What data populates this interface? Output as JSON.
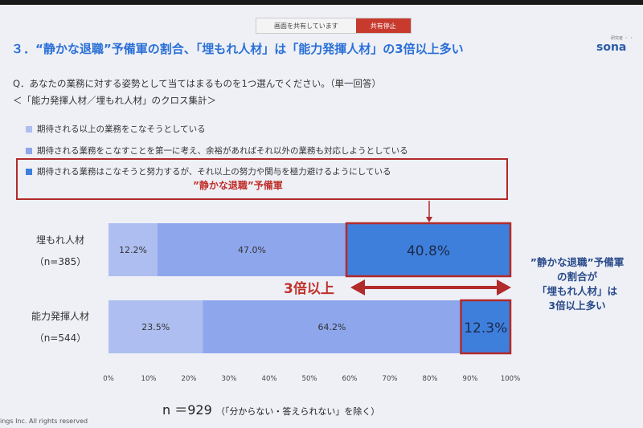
{
  "share_bar": {
    "message": "画面を共有しています",
    "stop_label": "共有停止"
  },
  "title": "３．“静かな退職”予備軍の割合、「埋もれ人材」は「能力発揮人材」の3倍以上多い",
  "logo": {
    "small": "研究者 ・ ・",
    "main": "sona"
  },
  "question": "Q．あなたの業務に対する姿勢として当てはまるものを1つ選んでください。（単一回答）",
  "subquestion": "＜「能力発揮人材／埋もれ人材」のクロス集計＞",
  "callout_label": "”静かな退職”予備軍",
  "comparison_label": "3倍以上",
  "side_note": [
    "”静かな退職”予備軍",
    "の割合が",
    "「埋もれ人材」は",
    "3倍以上多い"
  ],
  "n_total": "n ＝929",
  "n_note": "（「分からない・答えられない」を除く）",
  "copyright": "ings Inc. All rights reserved",
  "chart_data": {
    "type": "bar",
    "stacked": true,
    "orientation": "horizontal",
    "categories": [
      "埋もれ人材",
      "能力発揮人材"
    ],
    "category_n": [
      "（n=385）",
      "（n=544）"
    ],
    "series": [
      {
        "name": "期待される以上の業務をこなそうとしている",
        "values": [
          12.2,
          23.5
        ],
        "labels": [
          "12.2%",
          "23.5%"
        ],
        "color": "#aebef0"
      },
      {
        "name": "期待される業務をこなすことを第一に考え、余裕があればそれ以外の業務も対応しようとしている",
        "values": [
          47.0,
          64.2
        ],
        "labels": [
          "47.0%",
          "64.2%"
        ],
        "color": "#8ea6ec"
      },
      {
        "name": "期待される業務はこなそうと努力するが、それ以上の努力や関与を極力避けるようにしている",
        "values": [
          40.8,
          12.3
        ],
        "labels": [
          "40.8%",
          "12.3%"
        ],
        "color": "#3f7fdc"
      }
    ],
    "xlim": [
      0,
      100
    ],
    "xticks": [
      "0%",
      "10%",
      "20%",
      "30%",
      "40%",
      "50%",
      "60%",
      "70%",
      "80%",
      "90%",
      "100%"
    ]
  }
}
